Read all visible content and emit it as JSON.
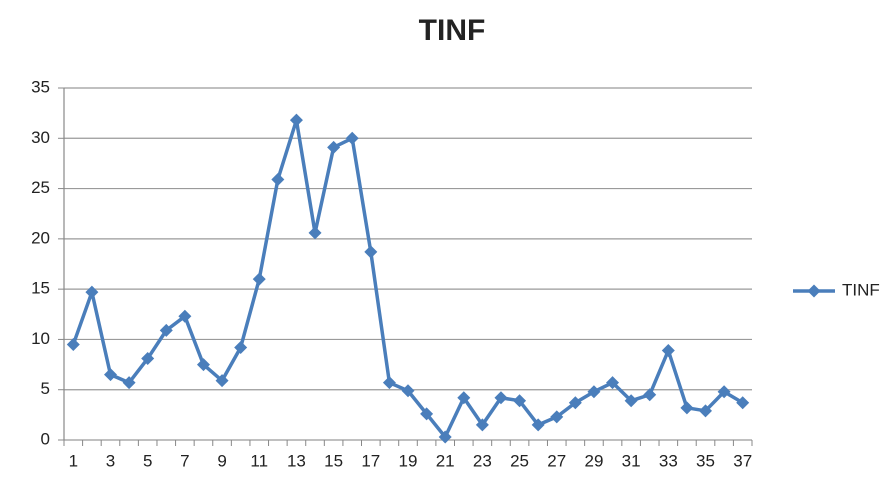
{
  "chart_data": {
    "type": "line",
    "title": "TINF",
    "categories": [
      "1",
      null,
      "3",
      null,
      "5",
      null,
      "7",
      null,
      "9",
      null,
      "11",
      null,
      "13",
      null,
      "15",
      null,
      "17",
      null,
      "19",
      null,
      "21",
      null,
      "23",
      null,
      "25",
      null,
      "27",
      null,
      "29",
      null,
      "31",
      null,
      "33",
      null,
      "35",
      null,
      "37"
    ],
    "series": [
      {
        "name": "TINF",
        "color": "#4a7ebb",
        "values": [
          9.5,
          14.7,
          6.5,
          5.7,
          8.1,
          10.9,
          12.3,
          7.5,
          5.9,
          9.2,
          16.0,
          25.9,
          31.8,
          20.6,
          29.1,
          30.0,
          18.7,
          5.7,
          4.9,
          2.6,
          0.3,
          4.2,
          1.5,
          4.2,
          3.9,
          1.5,
          2.3,
          3.7,
          4.8,
          5.7,
          3.9,
          4.5,
          8.9,
          3.2,
          2.9,
          4.8,
          3.7
        ]
      }
    ],
    "ylim": [
      0,
      35
    ],
    "yticks": [
      0,
      5,
      10,
      15,
      20,
      25,
      30,
      35
    ],
    "grid": true,
    "legend": "right"
  }
}
